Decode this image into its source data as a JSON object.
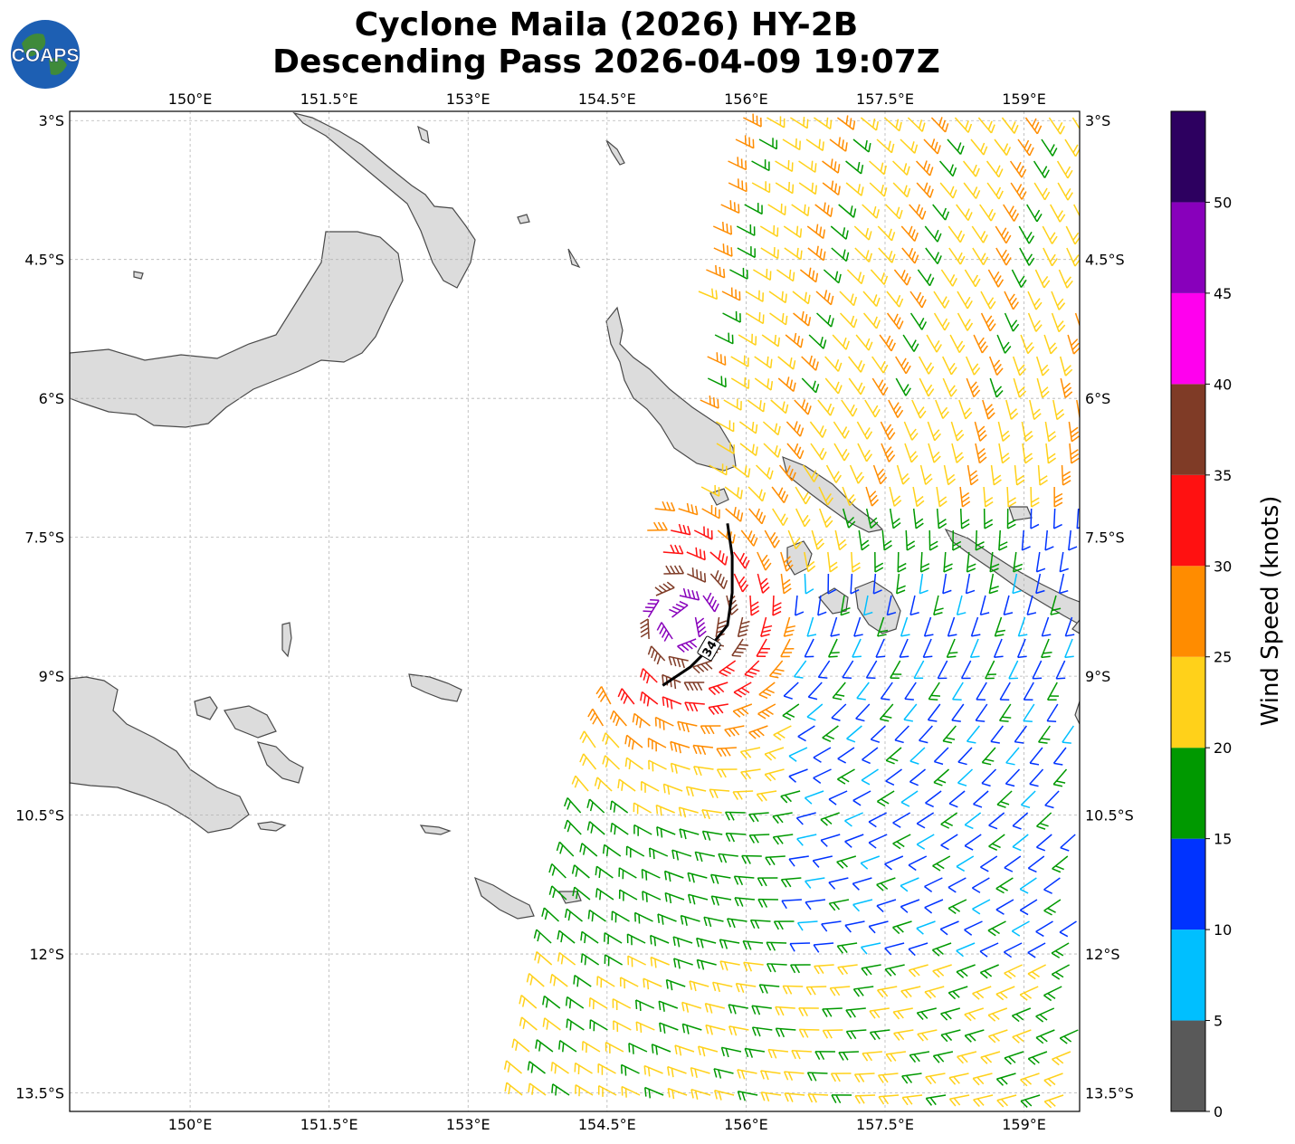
{
  "title": {
    "line1": "Cyclone Maila (2026) HY-2B",
    "line2": "Descending Pass 2026-04-09 19:07Z"
  },
  "logo": {
    "text": "COAPS"
  },
  "map": {
    "lon_range": [
      148.7,
      159.6
    ],
    "lat_range": [
      -13.7,
      -2.9
    ],
    "x_ticks": [
      {
        "value": 150.0,
        "label": "150°E"
      },
      {
        "value": 151.5,
        "label": "151.5°E"
      },
      {
        "value": 153.0,
        "label": "153°E"
      },
      {
        "value": 154.5,
        "label": "154.5°E"
      },
      {
        "value": 156.0,
        "label": "156°E"
      },
      {
        "value": 157.5,
        "label": "157.5°E"
      },
      {
        "value": 159.0,
        "label": "159°E"
      }
    ],
    "y_ticks": [
      {
        "value": -3.0,
        "label": "3°S"
      },
      {
        "value": -4.5,
        "label": "4.5°S"
      },
      {
        "value": -6.0,
        "label": "6°S"
      },
      {
        "value": -7.5,
        "label": "7.5°S"
      },
      {
        "value": -9.0,
        "label": "9°S"
      },
      {
        "value": -10.5,
        "label": "10.5°S"
      },
      {
        "value": -12.0,
        "label": "12°S"
      },
      {
        "value": -13.5,
        "label": "13.5°S"
      }
    ],
    "grid": true,
    "wind_radius_label": "34",
    "wind_radius_lonlat": [
      [
        155.1,
        -9.1
      ],
      [
        155.4,
        -8.9
      ],
      [
        155.6,
        -8.7
      ],
      [
        155.8,
        -8.45
      ],
      [
        155.85,
        -8.1
      ],
      [
        155.85,
        -7.7
      ],
      [
        155.8,
        -7.35
      ]
    ],
    "colors": {
      "land_fill": "#dcdcdc",
      "land_edge": "#4a4a4a",
      "grid": "#b4b4b4"
    }
  },
  "colorbar": {
    "label": "Wind Speed (knots)",
    "bounds": [
      0,
      5,
      10,
      15,
      20,
      25,
      30,
      35,
      40,
      45,
      50,
      55
    ],
    "tick_labels": [
      "0",
      "5",
      "10",
      "15",
      "20",
      "25",
      "30",
      "35",
      "40",
      "45",
      "50"
    ],
    "colors": [
      "#595959",
      "#00bfff",
      "#0033ff",
      "#009900",
      "#ffd11a",
      "#ff8c00",
      "#ff1111",
      "#7f3b26",
      "#ff00ee",
      "#8800bb",
      "#2d0060"
    ]
  }
}
